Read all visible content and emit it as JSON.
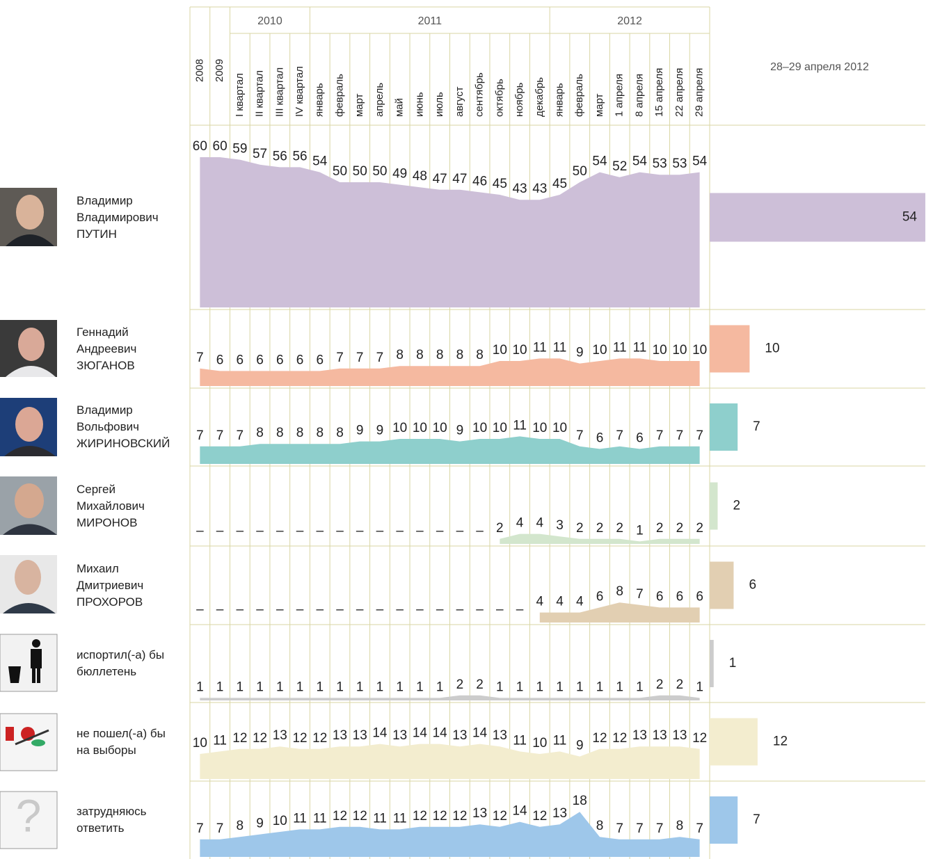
{
  "chart_data": {
    "type": "area",
    "latest_title": "28–29 апреля 2012",
    "categories": [
      "2008",
      "2009",
      "I квартал",
      "II квартал",
      "III квартал",
      "IV квартал",
      "январь",
      "февраль",
      "март",
      "апрель",
      "май",
      "июнь",
      "июль",
      "август",
      "сентябрь",
      "октябрь",
      "ноябрь",
      "декабрь",
      "январь",
      "февраль",
      "март",
      "1 апреля",
      "8 апреля",
      "15 апреля",
      "22 апреля",
      "29 апреля"
    ],
    "year_groups": [
      {
        "label": "2010",
        "span": 4
      },
      {
        "label": "2011",
        "span": 12
      },
      {
        "label": "2012",
        "span": 8
      }
    ],
    "series": [
      {
        "name": "Владимир\nВладимирович\nПУТИН",
        "color": "#cdbfd8",
        "values": [
          60,
          60,
          59,
          57,
          56,
          56,
          54,
          50,
          50,
          50,
          49,
          48,
          47,
          47,
          46,
          45,
          43,
          43,
          45,
          50,
          54,
          52,
          54,
          53,
          53,
          54
        ]
      },
      {
        "name": "Геннадий\nАндреевич\nЗЮГАНОВ",
        "color": "#f5b9a0",
        "values": [
          7,
          6,
          6,
          6,
          6,
          6,
          6,
          7,
          7,
          7,
          8,
          8,
          8,
          8,
          8,
          10,
          10,
          11,
          11,
          9,
          10,
          11,
          11,
          10,
          10,
          10
        ]
      },
      {
        "name": "Владимир\nВольфович\nЖИРИНОВСКИЙ",
        "color": "#8ecfcc",
        "values": [
          7,
          7,
          7,
          8,
          8,
          8,
          8,
          8,
          9,
          9,
          10,
          10,
          10,
          9,
          10,
          10,
          11,
          10,
          10,
          7,
          6,
          7,
          6,
          7,
          7,
          7
        ]
      },
      {
        "name": "Сергей\nМихайлович\nМИРОНОВ",
        "color": "#d3e6cd",
        "values": [
          null,
          null,
          null,
          null,
          null,
          null,
          null,
          null,
          null,
          null,
          null,
          null,
          null,
          null,
          null,
          2,
          4,
          4,
          3,
          2,
          2,
          2,
          1,
          2,
          2,
          2
        ],
        "value_labels": [
          "–",
          "–",
          "–",
          "–",
          "–",
          "–",
          "–",
          "–",
          "–",
          "–",
          "–",
          "–",
          "–",
          "–",
          "–",
          "2",
          "4",
          "4",
          "3",
          "2",
          "2",
          "2",
          "1",
          "2",
          "2",
          "2"
        ]
      },
      {
        "name": "Михаил\nДмитриевич\nПРОХОРОВ",
        "color": "#e2cfb2",
        "values": [
          null,
          null,
          null,
          null,
          null,
          null,
          null,
          null,
          null,
          null,
          null,
          null,
          null,
          null,
          null,
          null,
          null,
          4,
          4,
          4,
          6,
          8,
          7,
          6,
          6,
          6
        ],
        "value_labels": [
          "–",
          "–",
          "–",
          "–",
          "–",
          "–",
          "–",
          "–",
          "–",
          "–",
          "–",
          "–",
          "–",
          "–",
          "–",
          "–",
          "–",
          "4",
          "4",
          "4",
          "6",
          "8",
          "7",
          "6",
          "6",
          "6"
        ]
      },
      {
        "name": "испортил(-а) бы\nбюллетень",
        "color": "#cccccc",
        "values": [
          1,
          1,
          1,
          1,
          1,
          1,
          1,
          1,
          1,
          1,
          1,
          1,
          1,
          2,
          2,
          1,
          1,
          1,
          1,
          1,
          1,
          1,
          1,
          2,
          2,
          1
        ]
      },
      {
        "name": "не пошел(-а) бы\nна выборы",
        "color": "#f3edcf",
        "values": [
          10,
          11,
          12,
          12,
          13,
          12,
          12,
          13,
          13,
          14,
          13,
          14,
          14,
          13,
          14,
          13,
          11,
          10,
          11,
          9,
          12,
          12,
          13,
          13,
          13,
          12
        ]
      },
      {
        "name": "затрудняюсь\nответить",
        "color": "#9ec7ea",
        "values": [
          7,
          7,
          8,
          9,
          10,
          11,
          11,
          12,
          12,
          11,
          11,
          12,
          12,
          12,
          13,
          12,
          14,
          12,
          13,
          18,
          8,
          7,
          7,
          7,
          8,
          7
        ]
      }
    ]
  }
}
